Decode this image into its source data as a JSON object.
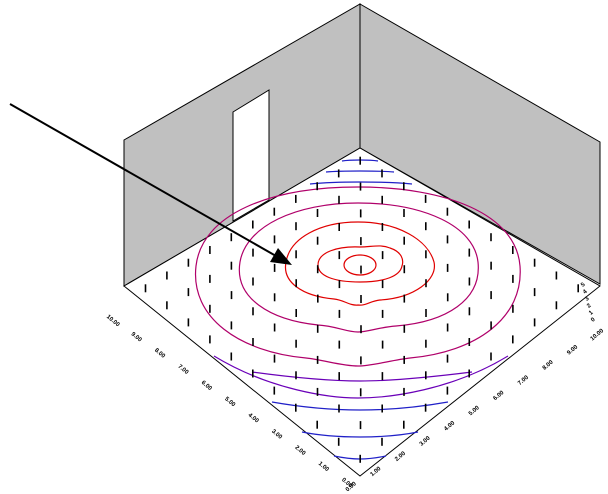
{
  "colors": {
    "wall": "#c0c0c0",
    "wall_edge": "#000000",
    "floor": "#ffffff",
    "door": "#ffffff",
    "arrow": "#000000",
    "contour_inner": "#e00000",
    "contour_mid": "#b0006a",
    "contour_outer": "#6a00b8",
    "contour_far": "#2020c8"
  },
  "left_axis": {
    "ticks": [
      "10.00",
      "9.00",
      "8.00",
      "7.00",
      "6.00",
      "5.00",
      "4.00",
      "3.00",
      "2.00",
      "1.00",
      "0.00"
    ]
  },
  "right_axis": {
    "ticks": [
      "0.00",
      "1.00",
      "2.00",
      "3.00",
      "4.00",
      "5.00",
      "6.00",
      "7.00",
      "8.00",
      "9.00",
      "10.00"
    ]
  },
  "right_edge_ticks": [
    "5",
    "4",
    "3",
    "2",
    "1",
    "0"
  ],
  "marker_grid": {
    "rows": 11,
    "cols": 11
  }
}
